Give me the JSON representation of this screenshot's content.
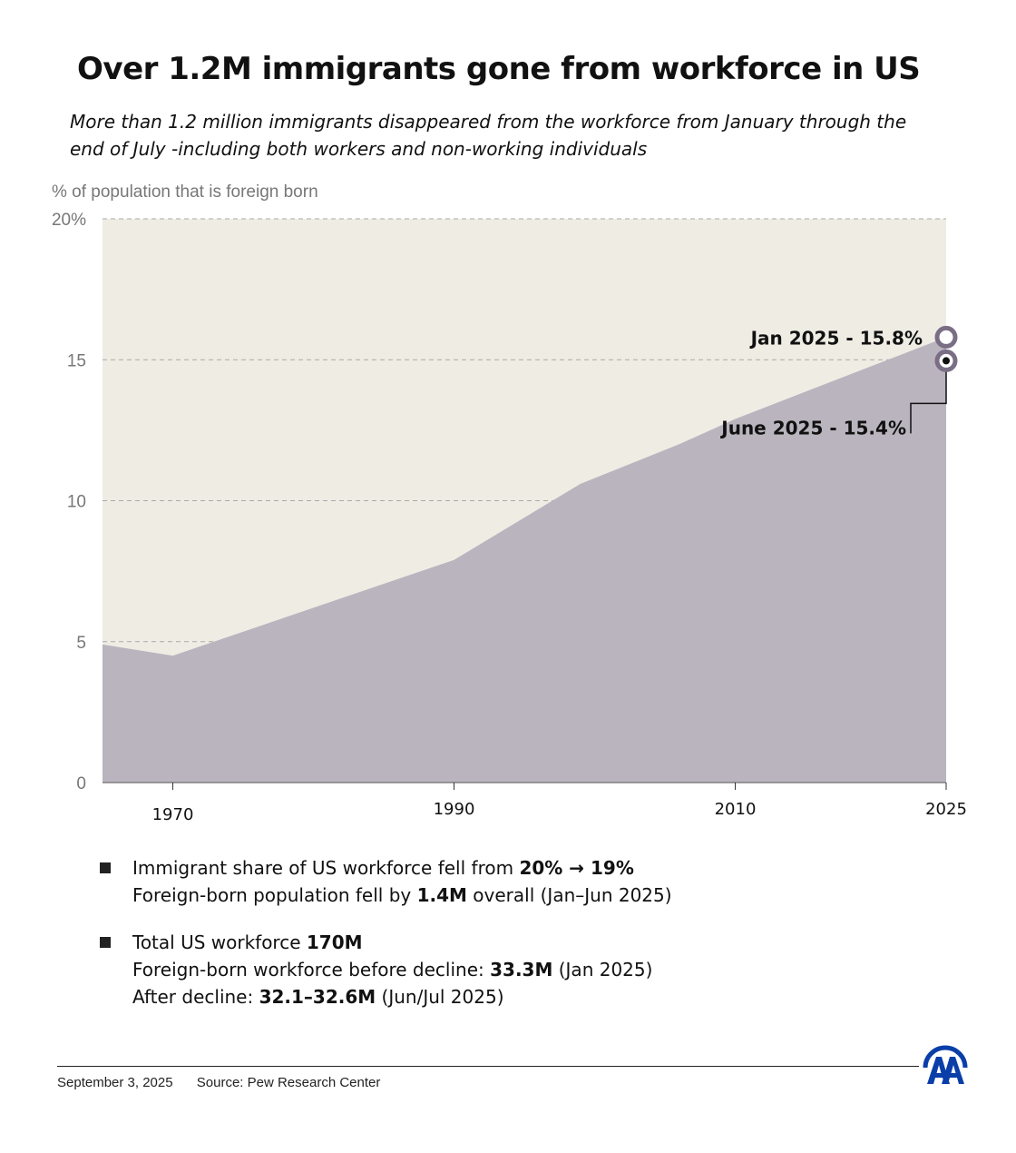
{
  "title": "Over 1.2M immigrants gone from workforce in US",
  "subtitle": "More than 1.2 million immigrants disappeared from the workforce from January through the end of July -including both workers and non-working individuals",
  "chart_data": {
    "type": "area",
    "ylabel": "% of population that is foreign born",
    "ylim": [
      0,
      20
    ],
    "xlim": [
      1965,
      2025
    ],
    "y_ticks": [
      0,
      5,
      10,
      15,
      20
    ],
    "y_tick_labels": [
      "0",
      "5",
      "10",
      "15",
      "20%"
    ],
    "x_ticks": [
      1970,
      1990,
      2010,
      2025
    ],
    "x_tick_labels": [
      "1970",
      "1990",
      "2010",
      "2025"
    ],
    "grid": "horizontal dashed",
    "series": [
      {
        "x": [
          1965,
          1970,
          1990,
          1999,
          2006,
          2010,
          2025
        ],
        "values": [
          4.9,
          4.5,
          7.9,
          10.6,
          12.0,
          12.9,
          15.8
        ]
      }
    ],
    "annotations": [
      {
        "label": "Jan 2025 - 15.8%",
        "x": 2025,
        "y": 15.8
      },
      {
        "label": "June 2025 - 15.4%",
        "x": 2025,
        "y": 15.4
      }
    ],
    "colors": {
      "area": "#b9b4be",
      "background": "#efece4",
      "marker": "#7a6e85"
    }
  },
  "notes": [
    {
      "line1_pre": "Immigrant share of US workforce fell from ",
      "line1_bold": "20% → 19%",
      "line2_pre": "Foreign-born population fell by  ",
      "line2_bold": "1.4M",
      "line2_post": " overall (Jan–Jun 2025)"
    },
    {
      "line1_pre": "Total US workforce ",
      "line1_bold": "170M",
      "line2_pre": "Foreign-born workforce before decline:  ",
      "line2_bold": "33.3M",
      "line2_post": " (Jan 2025)",
      "line3_pre": "After decline:  ",
      "line3_bold": "32.1–32.6M",
      "line3_post": " (Jun/Jul 2025)"
    }
  ],
  "footer": {
    "date": "September 3, 2025",
    "source": "Source: Pew Research Center"
  },
  "logo": {
    "text": "AA",
    "color": "#0a3ea8"
  }
}
